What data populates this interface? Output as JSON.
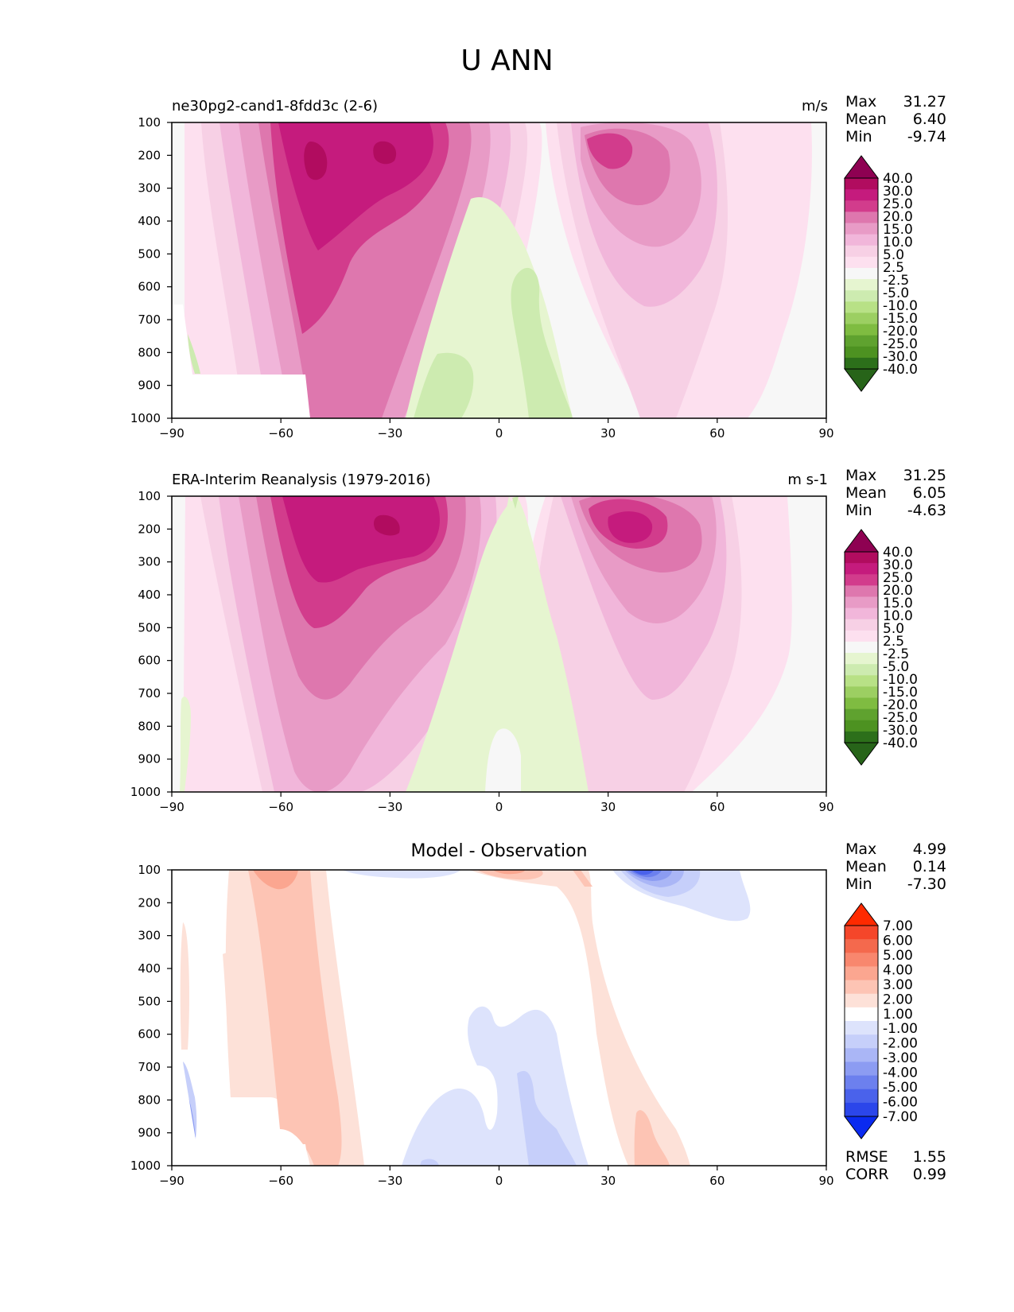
{
  "title": "U ANN",
  "panels": [
    {
      "left_title": "ne30pg2-cand1-8fdd3c (2-6)",
      "units": "m/s",
      "stats": [
        {
          "label": "Max",
          "value": "31.27"
        },
        {
          "label": "Mean",
          "value": "6.40"
        },
        {
          "label": "Min",
          "value": "-9.74"
        }
      ]
    },
    {
      "left_title": "ERA-Interim Reanalysis (1979-2016)",
      "units": "m s-1",
      "stats": [
        {
          "label": "Max",
          "value": "31.25"
        },
        {
          "label": "Mean",
          "value": "6.05"
        },
        {
          "label": "Min",
          "value": "-4.63"
        }
      ]
    },
    {
      "center_title": "Model - Observation",
      "stats": [
        {
          "label": "Max",
          "value": "4.99"
        },
        {
          "label": "Mean",
          "value": "0.14"
        },
        {
          "label": "Min",
          "value": "-7.30"
        }
      ],
      "extra_stats": [
        {
          "label": "RMSE",
          "value": "1.55"
        },
        {
          "label": "CORR",
          "value": "0.99"
        }
      ]
    }
  ],
  "chart_data": [
    {
      "type": "heatmap",
      "title": "ne30pg2-cand1-8fdd3c (2-6)",
      "x_ticks": [
        "−90",
        "−60",
        "−30",
        "0",
        "30",
        "60",
        "90"
      ],
      "y_ticks": [
        "100",
        "200",
        "300",
        "400",
        "500",
        "600",
        "700",
        "800",
        "900",
        "1000"
      ],
      "xlim": [
        -90,
        90
      ],
      "ylim": [
        1000,
        100
      ],
      "colorbar": {
        "levels": [
          "40.0",
          "30.0",
          "25.0",
          "20.0",
          "15.0",
          "10.0",
          "5.0",
          "2.5",
          "-2.5",
          "-5.0",
          "-10.0",
          "-15.0",
          "-20.0",
          "-25.0",
          "-30.0",
          "-40.0"
        ],
        "colors": [
          "#8e0152",
          "#b10c5f",
          "#c51b7d",
          "#d23c8c",
          "#de77ae",
          "#e89bc6",
          "#f1b6da",
          "#f7d0e5",
          "#fde0ef",
          "#f7f7f7",
          "#e6f5d0",
          "#cdebb0",
          "#b8e186",
          "#9ccf62",
          "#7fbc41",
          "#5fa22f",
          "#4d9221",
          "#2c6f1a",
          "#276419"
        ]
      }
    },
    {
      "type": "heatmap",
      "title": "ERA-Interim Reanalysis (1979-2016)",
      "x_ticks": [
        "−90",
        "−60",
        "−30",
        "0",
        "30",
        "60",
        "90"
      ],
      "y_ticks": [
        "100",
        "200",
        "300",
        "400",
        "500",
        "600",
        "700",
        "800",
        "900",
        "1000"
      ],
      "xlim": [
        -90,
        90
      ],
      "ylim": [
        1000,
        100
      ],
      "colorbar": {
        "levels": [
          "40.0",
          "30.0",
          "25.0",
          "20.0",
          "15.0",
          "10.0",
          "5.0",
          "2.5",
          "-2.5",
          "-5.0",
          "-10.0",
          "-15.0",
          "-20.0",
          "-25.0",
          "-30.0",
          "-40.0"
        ],
        "colors": [
          "#8e0152",
          "#b10c5f",
          "#c51b7d",
          "#d23c8c",
          "#de77ae",
          "#e89bc6",
          "#f1b6da",
          "#f7d0e5",
          "#fde0ef",
          "#f7f7f7",
          "#e6f5d0",
          "#cdebb0",
          "#b8e186",
          "#9ccf62",
          "#7fbc41",
          "#5fa22f",
          "#4d9221",
          "#2c6f1a",
          "#276419"
        ]
      }
    },
    {
      "type": "heatmap",
      "title": "Model - Observation",
      "x_ticks": [
        "−90",
        "−60",
        "−30",
        "0",
        "30",
        "60",
        "90"
      ],
      "y_ticks": [
        "100",
        "200",
        "300",
        "400",
        "500",
        "600",
        "700",
        "800",
        "900",
        "1000"
      ],
      "xlim": [
        -90,
        90
      ],
      "ylim": [
        1000,
        100
      ],
      "colorbar": {
        "levels": [
          "7.00",
          "6.00",
          "5.00",
          "4.00",
          "3.00",
          "2.00",
          "1.00",
          "-1.00",
          "-2.00",
          "-3.00",
          "-4.00",
          "-5.00",
          "-6.00",
          "-7.00"
        ],
        "colors": [
          "#ff2a00",
          "#f5462a",
          "#f4694d",
          "#f8876e",
          "#fba690",
          "#fdc4b4",
          "#fde1d8",
          "#ffffff",
          "#dde3fc",
          "#c6cffa",
          "#aab6f6",
          "#8c9cf2",
          "#6c80ee",
          "#4a62eb",
          "#2b46ea",
          "#0a2af0"
        ]
      }
    }
  ]
}
